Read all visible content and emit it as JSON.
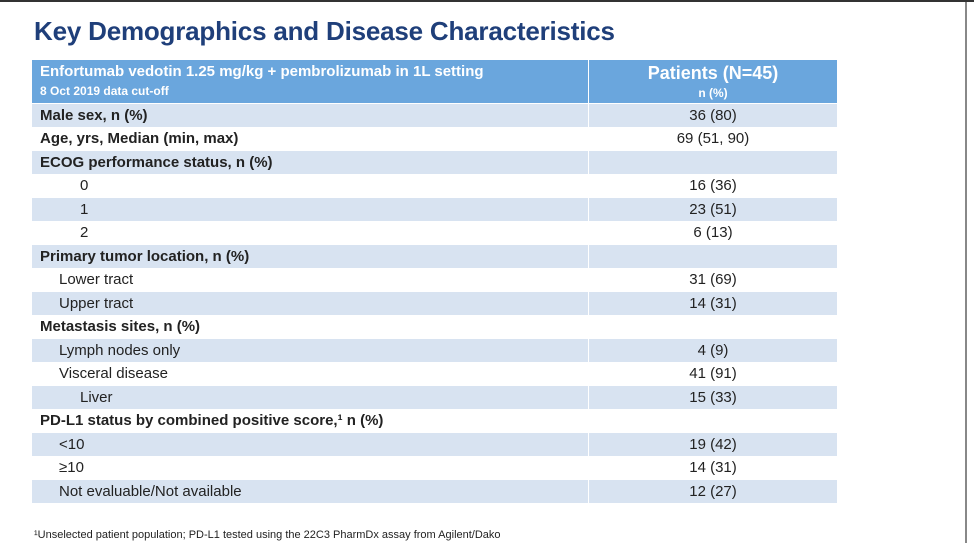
{
  "title": "Key Demographics and Disease Characteristics",
  "table": {
    "header": {
      "left": [
        "Enfortumab vedotin 1.25 mg/kg + pembrolizumab in 1L setting",
        "8 Oct 2019 data cut-off"
      ],
      "right": [
        "Patients (N=45)",
        "n (%)"
      ]
    },
    "rows": [
      [
        "Male sex, n (%)",
        "36 (80)"
      ],
      [
        "Age, yrs, Median (min, max)",
        "69 (51, 90)"
      ],
      [
        "ECOG performance status, n (%)"
      ],
      [
        "0",
        "16 (36)"
      ],
      [
        "1",
        "23 (51)"
      ],
      [
        "2",
        "6 (13)"
      ],
      [
        "Primary tumor location, n (%)"
      ],
      [
        "Lower tract",
        "31 (69)"
      ],
      [
        "Upper tract",
        "14 (31)"
      ],
      [
        "Metastasis sites, n (%)"
      ],
      [
        "Lymph nodes only",
        "4 (9)"
      ],
      [
        "Visceral disease",
        "41 (91)"
      ],
      [
        "Liver",
        "15 (33)"
      ],
      [
        "PD-L1 status by combined positive score,¹ n (%)"
      ],
      [
        "<10",
        "19 (42)"
      ],
      [
        "≥10",
        "14 (31)"
      ],
      [
        "Not evaluable/Not available",
        "12 (27)"
      ]
    ]
  },
  "footnote": "¹Unselected patient population; PD-L1 tested using the 22C3 PharmDx assay from Agilent/Dako"
}
